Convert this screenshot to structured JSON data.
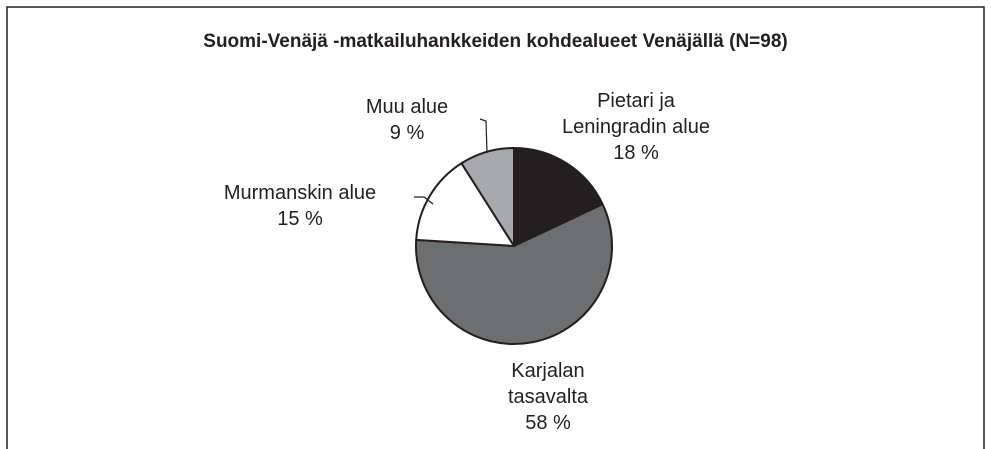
{
  "chart_data": {
    "type": "pie",
    "title": "Suomi-Venäjä -matkailuhankkeiden kohdealueet Venäjällä (N=98)",
    "categories": [
      "Pietari ja\nLeningradin alue",
      "Karjalan\ntasavalta",
      "Murmanskin alue",
      "Muu alue"
    ],
    "values": [
      18,
      58,
      15,
      9
    ],
    "value_labels": [
      "18 %",
      "58 %",
      "15 %",
      "9 %"
    ],
    "colors": [
      "#231f20",
      "#6d6e70",
      "#ffffff",
      "#a7a9ac"
    ]
  }
}
